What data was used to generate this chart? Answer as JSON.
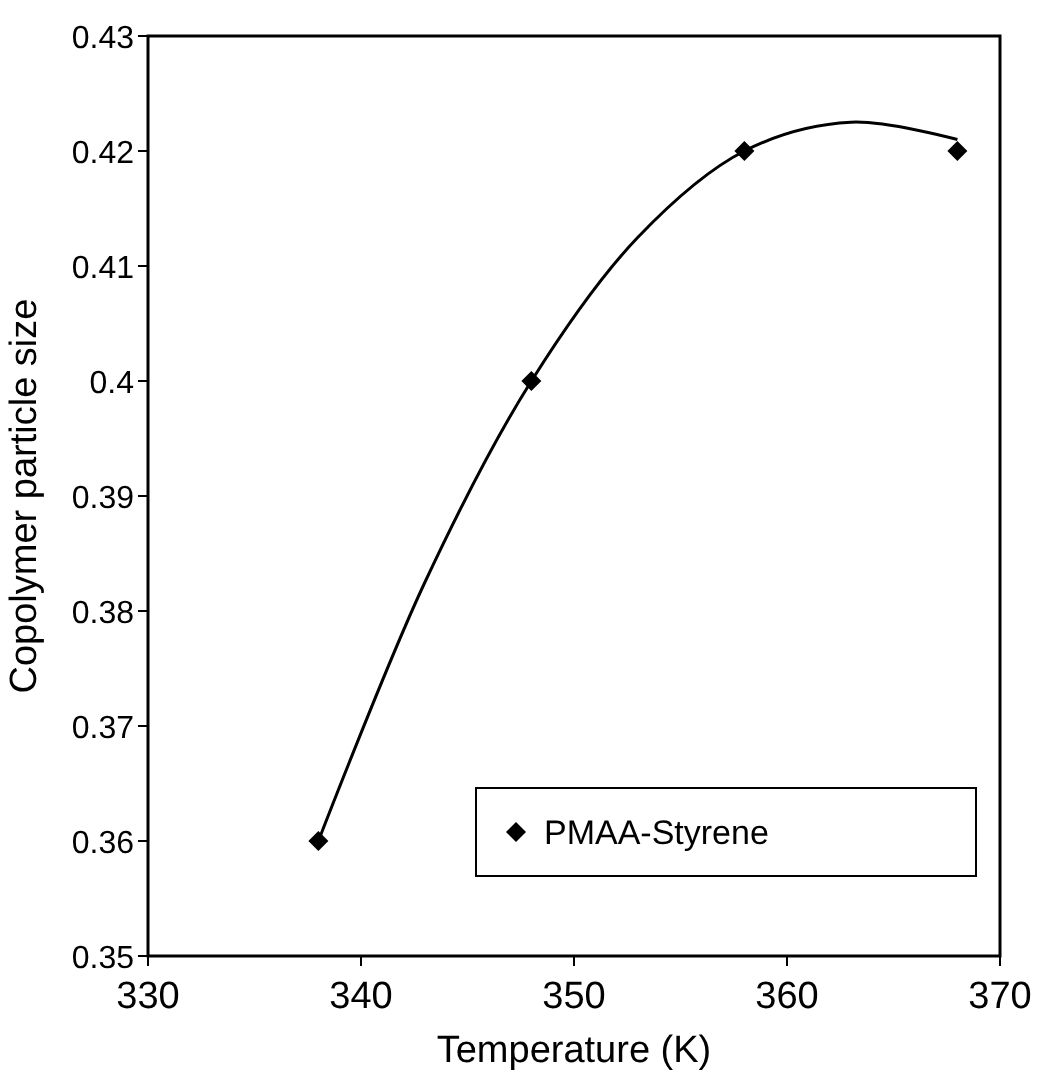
{
  "chart_data": {
    "type": "scatter",
    "xlabel": "Temperature (K)",
    "ylabel": "Copolymer particle size",
    "xlim": [
      330,
      370
    ],
    "xticks": [
      330,
      340,
      350,
      360,
      370
    ],
    "ylim": [
      0.35,
      0.43
    ],
    "yticks": [
      0.35,
      0.36,
      0.37,
      0.38,
      0.39,
      0.4,
      0.41,
      0.42,
      0.43
    ],
    "grid": false,
    "legend": "bottom right",
    "x": [
      338,
      348,
      358,
      368
    ],
    "series": [
      {
        "name": "PMAA-Styrene",
        "color": "#000000",
        "marker": "diamond",
        "values": [
          0.36,
          0.4,
          0.42,
          0.42
        ]
      },
      {
        "type": "line",
        "color": "#000000",
        "marker": "none",
        "line_style": "solid",
        "x": [
          338,
          343,
          348,
          353,
          358,
          363,
          368
        ],
        "values": [
          0.36,
          0.3825,
          0.4,
          0.4125,
          0.42,
          0.4225,
          0.421
        ]
      }
    ]
  }
}
